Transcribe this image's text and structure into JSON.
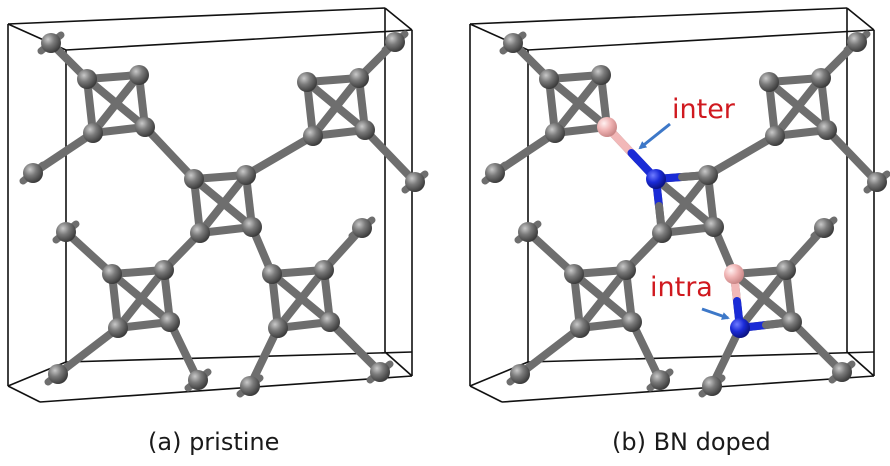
{
  "panels": [
    {
      "id": "a",
      "caption": "(a) pristine",
      "annotations": []
    },
    {
      "id": "b",
      "caption": "(b) BN doped",
      "annotations": [
        {
          "label": "inter"
        },
        {
          "label": "intra"
        }
      ]
    }
  ],
  "colors": {
    "carbon": "#6e6e6e",
    "boron": "#f2b8b8",
    "nitrogen": "#1a2bd6",
    "label": "#d0191f",
    "arrow": "#3d78c8",
    "cell_edge": "#111111"
  }
}
